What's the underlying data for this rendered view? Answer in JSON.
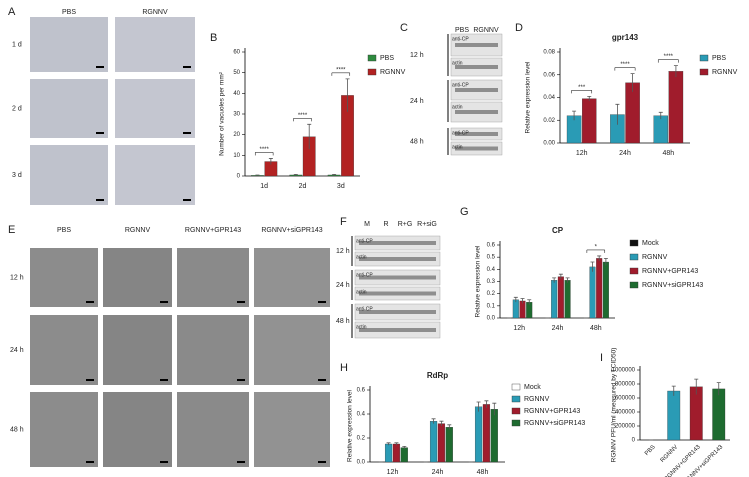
{
  "panels": {
    "A": {
      "label": "A",
      "columns": [
        "PBS",
        "RGNNV"
      ],
      "rows": [
        "1 d",
        "2 d",
        "3 d"
      ]
    },
    "C": {
      "label": "C",
      "columns": [
        "PBS",
        "RGNNV"
      ],
      "rows": [
        "12 h",
        "24 h",
        "48 h"
      ],
      "bands": [
        "anti-CP",
        "actin"
      ]
    },
    "E": {
      "label": "E",
      "columns": [
        "PBS",
        "RGNNV",
        "RGNNV+GPR143",
        "RGNNV+siGPR143"
      ],
      "rows": [
        "12 h",
        "24 h",
        "48 h"
      ]
    },
    "F": {
      "label": "F",
      "columns": [
        "M",
        "R",
        "R+G",
        "R+siG"
      ],
      "rows": [
        "12 h",
        "24 h",
        "48 h"
      ],
      "bands": [
        "anti-CP",
        "actin"
      ]
    }
  },
  "chart_data": [
    {
      "type": "bar",
      "panel": "B",
      "ylabel": "Number of vacuoles per mm²",
      "categories": [
        "1d",
        "2d",
        "3d"
      ],
      "series": [
        {
          "name": "PBS",
          "color": "#2e8b3e",
          "values": [
            0.3,
            0.5,
            0.5
          ],
          "errors": [
            0.2,
            0.3,
            0.3
          ]
        },
        {
          "name": "RGNNV",
          "color": "#b22222",
          "values": [
            7,
            19,
            39
          ],
          "errors": [
            1.5,
            6,
            8
          ]
        }
      ],
      "ylim": [
        0,
        60
      ],
      "yticks": [
        0,
        10,
        20,
        30,
        40,
        50,
        60
      ],
      "annotations": [
        "****",
        "****",
        "****"
      ]
    },
    {
      "type": "bar",
      "panel": "D",
      "title": "gpr143",
      "ylabel": "Relative expression level",
      "categories": [
        "12h",
        "24h",
        "48h"
      ],
      "series": [
        {
          "name": "PBS",
          "color": "#2a9bb5",
          "values": [
            0.024,
            0.025,
            0.024
          ],
          "errors": [
            0.004,
            0.009,
            0.003
          ]
        },
        {
          "name": "RGNNV",
          "color": "#a01c2c",
          "values": [
            0.039,
            0.053,
            0.063
          ],
          "errors": [
            0.002,
            0.008,
            0.005
          ]
        }
      ],
      "ylim": [
        0,
        0.08
      ],
      "yticks": [
        {
          "value": 0,
          "label": "0.00"
        },
        0.02,
        0.04,
        0.06,
        0.08
      ],
      "annotations": [
        "***",
        "****",
        "****"
      ]
    },
    {
      "type": "bar",
      "panel": "G",
      "title": "CP",
      "ylabel": "Relative expression level",
      "categories": [
        "12h",
        "24h",
        "48h"
      ],
      "series": [
        {
          "name": "Mock",
          "color": "#111111",
          "values": [
            0,
            0,
            0
          ],
          "errors": [
            0,
            0,
            0
          ]
        },
        {
          "name": "RGNNV",
          "color": "#2a9bb5",
          "values": [
            0.15,
            0.31,
            0.42
          ],
          "errors": [
            0.02,
            0.02,
            0.04
          ]
        },
        {
          "name": "RGNNV+GPR143",
          "color": "#a01c2c",
          "values": [
            0.14,
            0.34,
            0.49
          ],
          "errors": [
            0.02,
            0.02,
            0.02
          ]
        },
        {
          "name": "RGNNV+siGPR143",
          "color": "#1e6b30",
          "values": [
            0.13,
            0.31,
            0.46
          ],
          "errors": [
            0.02,
            0.02,
            0.03
          ]
        }
      ],
      "ylim": [
        0,
        0.6
      ],
      "yticks": [
        {
          "value": 0,
          "label": "0.0"
        },
        0.1,
        0.2,
        0.3,
        0.4,
        0.5,
        0.6
      ],
      "annotations": [
        "*"
      ]
    },
    {
      "type": "bar",
      "panel": "H",
      "title": "RdRp",
      "ylabel": "Relative expression level",
      "categories": [
        "12h",
        "24h",
        "48h"
      ],
      "series": [
        {
          "name": "Mock",
          "color": "#ffffff",
          "values": [
            0,
            0,
            0
          ],
          "errors": [
            0,
            0,
            0
          ]
        },
        {
          "name": "RGNNV",
          "color": "#2a9bb5",
          "values": [
            0.15,
            0.34,
            0.46
          ],
          "errors": [
            0.01,
            0.02,
            0.04
          ]
        },
        {
          "name": "RGNNV+GPR143",
          "color": "#a01c2c",
          "values": [
            0.15,
            0.32,
            0.48
          ],
          "errors": [
            0.01,
            0.02,
            0.03
          ]
        },
        {
          "name": "RGNNV+siGPR143",
          "color": "#1e6b30",
          "values": [
            0.12,
            0.29,
            0.44
          ],
          "errors": [
            0.01,
            0.02,
            0.05
          ]
        }
      ],
      "ylim": [
        0,
        0.6
      ],
      "yticks": [
        {
          "value": 0,
          "label": "0.0"
        },
        0.2,
        0.4,
        0.6
      ]
    },
    {
      "type": "bar",
      "panel": "I",
      "ylabel": "RGNNV PFU/ml (measured by TCID50)",
      "categories": [
        "PBS",
        "RGNNV",
        "RGNNV+GPR143",
        "RGNNV+siGPR143"
      ],
      "values": [
        0,
        700000,
        760000,
        730000
      ],
      "errors": [
        0,
        70000,
        110000,
        90000
      ],
      "colors": [
        "#2a9bb5",
        "#2a9bb5",
        "#a01c2c",
        "#1e6b30"
      ],
      "ylim": [
        0,
        1000000
      ],
      "yticks": [
        0,
        200000,
        400000,
        600000,
        800000,
        1000000
      ]
    }
  ]
}
